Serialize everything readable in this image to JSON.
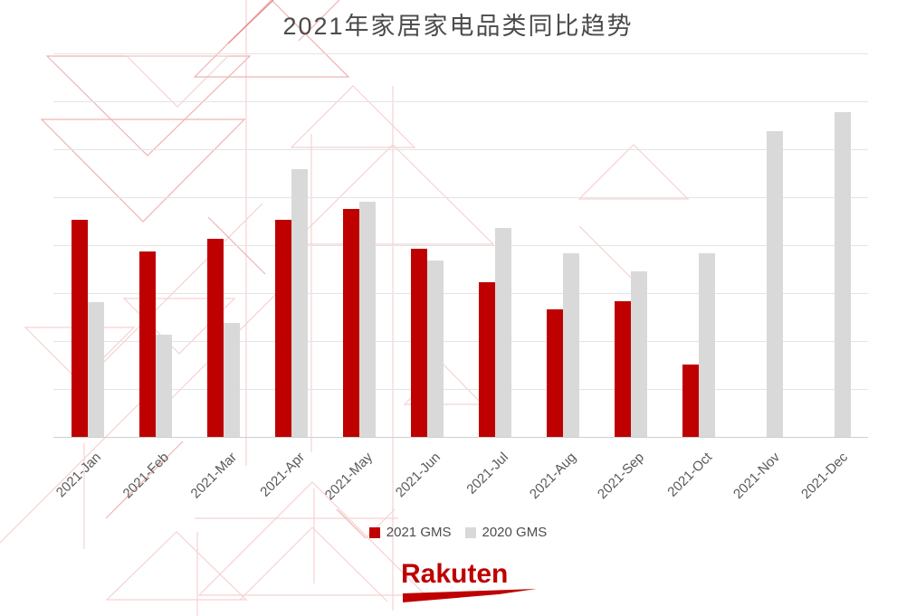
{
  "title": "2021年家居家电品类同比趋势",
  "legend": [
    {
      "label": "2021 GMS",
      "color": "#bf0000"
    },
    {
      "label": "2020 GMS",
      "color": "#d9d9d9"
    }
  ],
  "logo": {
    "text": "Rakuten",
    "color": "#bf0000"
  },
  "colors": {
    "series_2021": "#bf0000",
    "series_2020": "#d9d9d9",
    "title_text": "#4b4b4b",
    "axis_text": "#595959",
    "gridline": "#e4e4e4",
    "axis_line": "#cfcfcf",
    "pattern_pink": "#efb3b3",
    "background": "#ffffff"
  },
  "chart_data": {
    "type": "bar",
    "title": "2021年家居家电品类同比趋势",
    "categories": [
      "2021-Jan",
      "2021-Feb",
      "2021-Mar",
      "2021-Apr",
      "2021-May",
      "2021-Jun",
      "2021-Jul",
      "2021-Aug",
      "2021-Sep",
      "2021-Oct",
      "2021-Nov",
      "2021-Dec"
    ],
    "series": [
      {
        "name": "2021 GMS",
        "color": "#bf0000",
        "values": [
          4.53,
          3.87,
          4.13,
          4.53,
          4.75,
          3.92,
          3.23,
          2.66,
          2.83,
          1.51,
          null,
          null
        ]
      },
      {
        "name": "2020 GMS",
        "color": "#d9d9d9",
        "values": [
          2.81,
          2.13,
          2.38,
          5.58,
          4.91,
          3.68,
          4.36,
          3.83,
          3.45,
          3.83,
          6.38,
          6.77
        ]
      }
    ],
    "xlabel": "",
    "ylabel": "",
    "ylim": [
      0,
      8
    ],
    "y_axis_labels_visible": false,
    "units": "relative index (no y-axis labels shown)",
    "grid": true,
    "x_tick_rotation": -45,
    "legend_position": "bottom"
  }
}
